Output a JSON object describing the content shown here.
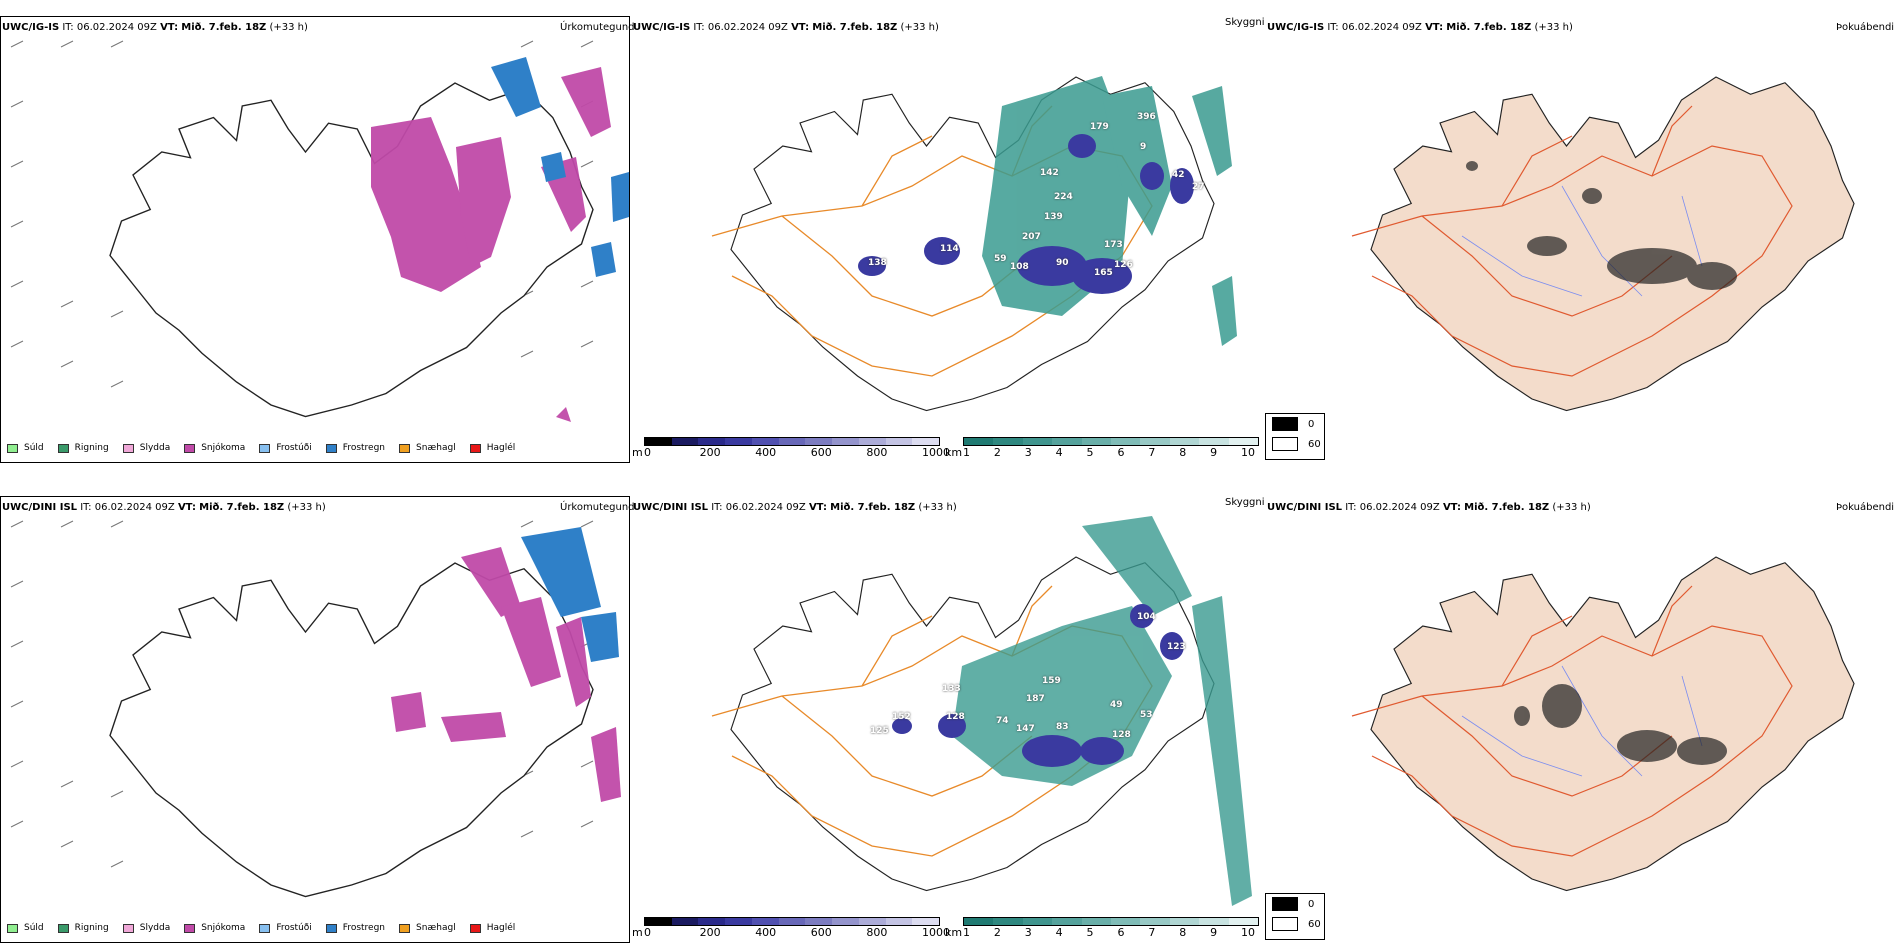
{
  "rows": [
    {
      "model": "UWC/IG-IS",
      "init_label": "IT:",
      "init_time": "06.02.2024 09Z",
      "valid_label": "VT:",
      "valid_time": "Mið. 7.feb. 18Z",
      "lead": "(+33 h)",
      "panels": {
        "precip_type": "Úrkomutegund",
        "visibility": "Skyggni",
        "fog": "Þokuábendi"
      },
      "visibility_labels": [
        "179",
        "396",
        "142",
        "224",
        "139",
        "207",
        "173",
        "126",
        "114",
        "59",
        "108",
        "90",
        "165",
        "138",
        "9",
        "42",
        "27"
      ]
    },
    {
      "model": "UWC/DINI ISL",
      "init_label": "IT:",
      "init_time": "06.02.2024 09Z",
      "valid_label": "VT:",
      "valid_time": "Mið. 7.feb. 18Z",
      "lead": "(+33 h)",
      "panels": {
        "precip_type": "Úrkomutegund",
        "visibility": "Skyggni",
        "fog": "Þokuábendi"
      },
      "visibility_labels": [
        "104",
        "123",
        "159",
        "187",
        "49",
        "53",
        "133",
        "128",
        "74",
        "147",
        "83",
        "128",
        "152",
        "125"
      ]
    }
  ],
  "precip_legend": [
    {
      "label": "Súld",
      "color": "#90ee90"
    },
    {
      "label": "Rigning",
      "color": "#3a9a6a"
    },
    {
      "label": "Slydda",
      "color": "#f0a8d8"
    },
    {
      "label": "Snjókoma",
      "color": "#c04aa8"
    },
    {
      "label": "Frostúði",
      "color": "#88c0f0"
    },
    {
      "label": "Frostregn",
      "color": "#2f80c8"
    },
    {
      "label": "Snæhagl",
      "color": "#f0a020"
    },
    {
      "label": "Haglél",
      "color": "#e81818"
    }
  ],
  "height_scale": {
    "unit": "m",
    "ticks": [
      "0",
      "200",
      "400",
      "600",
      "800",
      "1000"
    ],
    "colors": [
      "#000000",
      "#1a1a60",
      "#2a2a8a",
      "#3a3aa0",
      "#5050b0",
      "#6868b8",
      "#7c7cc0",
      "#9494cc",
      "#acacd8",
      "#c4c4e4",
      "#dcdcf0"
    ]
  },
  "visibility_scale": {
    "unit": "km",
    "ticks": [
      "1",
      "2",
      "3",
      "4",
      "5",
      "6",
      "7",
      "8",
      "9",
      "10"
    ],
    "colors": [
      "#1f7a72",
      "#2f8880",
      "#40958e",
      "#55a29c",
      "#6aafa9",
      "#80bcb7",
      "#98c9c5",
      "#b0d6d3",
      "#c8e3e1",
      "#e2f1f0"
    ]
  },
  "fog_scale": {
    "entries": [
      {
        "label": "0",
        "color": "#000000"
      },
      {
        "label": "60",
        "color": "#ffffff"
      }
    ]
  }
}
